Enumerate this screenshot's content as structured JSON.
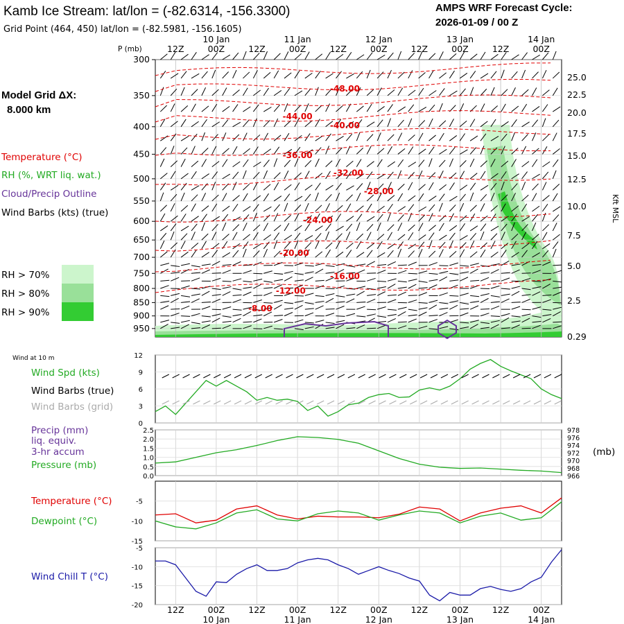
{
  "header": {
    "title": "Kamb Ice Stream:  lat/lon = (-82.6314, -156.3300)",
    "grid_point": "Grid Point (464, 450) lat/lon = (-82.5981, -156.1605)",
    "forecast_label": "AMPS WRF Forecast Cycle:",
    "forecast_cycle": "2026-01-09 / 00  Z",
    "model_grid_label": "Model Grid ΔX:",
    "model_grid_value": "8.000 km"
  },
  "legend": {
    "temperature": "Temperature (°C)",
    "rh": "RH (%, WRT liq. wat.)",
    "cloud": "Cloud/Precip Outline",
    "wind_barbs": "Wind Barbs (kts) (true)",
    "rh70": "RH > 70%",
    "rh80": "RH > 80%",
    "rh90": "RH > 90%",
    "kft_label": "Kft MSL",
    "p_label": "P (mb)",
    "wind10m": "Wind at 10 m",
    "wind_spd": "Wind Spd (kts)",
    "wind_barbs_true": "Wind Barbs (true)",
    "wind_barbs_grid": "Wind Barbs (grid)",
    "precip1": "Precip (mm)",
    "precip2": "liq. equiv.",
    "precip3": "3-hr accum",
    "pressure": "Pressure (mb)",
    "pressure_units": "(mb)",
    "temp_panel": "Temperature (°C)",
    "dewpoint_panel": "Dewpoint (°C)",
    "windchill_panel": "Wind Chill T (°C)"
  },
  "colors": {
    "temp": "#e00000",
    "rh_green": "#22aa22",
    "cloud": "#663399",
    "windchill": "#1a1aa8",
    "grid_barb": "#aaaaaa",
    "rh70": "#ccf5cc",
    "rh80": "#99e099",
    "rh90": "#33cc33"
  },
  "chart_data": [
    {
      "type": "time-height",
      "name": "sounding",
      "time_hours": [
        0,
        120
      ],
      "time_ticks": [
        "12Z",
        "00Z",
        "12Z",
        "00Z",
        "12Z",
        "00Z",
        "12Z",
        "00Z",
        "12Z",
        "00Z"
      ],
      "date_ticks": [
        "10 Jan",
        "11 Jan",
        "12 Jan",
        "13 Jan",
        "14 Jan"
      ],
      "pressure_levels_mb": [
        "300",
        "350",
        "400",
        "450",
        "500",
        "550",
        "600",
        "650",
        "700",
        "750",
        "800",
        "850",
        "900",
        "950"
      ],
      "height_kft": [
        "25.0",
        "22.5",
        "20.0",
        "17.5",
        "15.0",
        "12.5",
        "10.0",
        "7.5",
        "5.0",
        "2.5",
        "0.29"
      ],
      "temperature_labels": [
        {
          "value": "-48.00",
          "t": 56,
          "p": 340
        },
        {
          "value": "-44.00",
          "t": 42,
          "p": 383
        },
        {
          "value": "-40.00",
          "t": 56,
          "p": 398
        },
        {
          "value": "-36.00",
          "t": 42,
          "p": 452
        },
        {
          "value": "-32.00",
          "t": 57,
          "p": 488
        },
        {
          "value": "-28.00",
          "t": 66,
          "p": 528
        },
        {
          "value": "-24.00",
          "t": 48,
          "p": 597
        },
        {
          "value": "-20.00",
          "t": 41,
          "p": 687
        },
        {
          "value": "-16.00",
          "t": 56,
          "p": 760
        },
        {
          "value": "-12.00",
          "t": 40,
          "p": 808
        },
        {
          "value": "-8.00",
          "t": 31,
          "p": 872
        }
      ]
    },
    {
      "type": "line",
      "name": "wind_speed",
      "title": "Wind Spd (kts)",
      "ylim": [
        0,
        12
      ],
      "yticks": [
        "0",
        "3",
        "6",
        "9",
        "12"
      ],
      "x": [
        0,
        3,
        6,
        9,
        12,
        15,
        18,
        21,
        24,
        27,
        30,
        33,
        36,
        39,
        42,
        45,
        48,
        51,
        54,
        57,
        60,
        63,
        66,
        69,
        72,
        75,
        78,
        81,
        84,
        87,
        90,
        93,
        96,
        99,
        102,
        105,
        108,
        111,
        114,
        117,
        120
      ],
      "series": [
        {
          "name": "Wind Spd",
          "values": [
            2.0,
            3.0,
            1.5,
            3.5,
            5.5,
            7.5,
            6.5,
            7.5,
            6.5,
            5.5,
            4.0,
            4.5,
            4.0,
            4.2,
            3.8,
            2.2,
            3.0,
            1.2,
            2.0,
            3.2,
            3.5,
            4.5,
            5.0,
            5.2,
            4.5,
            4.6,
            5.8,
            6.2,
            5.8,
            6.5,
            7.8,
            9.5,
            10.5,
            11.2,
            10.0,
            9.2,
            8.5,
            7.8,
            6.0,
            5.0,
            4.3
          ]
        }
      ]
    },
    {
      "type": "line",
      "name": "pressure_precip",
      "title": "Pressure (mb)",
      "ylim_precip": [
        0,
        2.5
      ],
      "ylim_pressure": [
        966,
        978
      ],
      "yticks_left": [
        "0.0",
        "0.5",
        "1.0",
        "1.5",
        "2.0",
        "2.5"
      ],
      "yticks_right": [
        "966",
        "968",
        "970",
        "972",
        "974",
        "976",
        "978"
      ],
      "x": [
        0,
        6,
        12,
        18,
        24,
        30,
        36,
        42,
        48,
        54,
        60,
        66,
        72,
        78,
        84,
        90,
        96,
        102,
        108,
        114,
        120
      ],
      "series": [
        {
          "name": "Pressure",
          "values": [
            969.3,
            969.6,
            970.8,
            972.0,
            972.8,
            973.9,
            975.2,
            976.2,
            976.0,
            975.5,
            974.5,
            972.5,
            970.5,
            969.0,
            968.2,
            967.9,
            968.0,
            967.7,
            967.4,
            967.2,
            966.8
          ]
        }
      ]
    },
    {
      "type": "line",
      "name": "temp_dewpoint",
      "ylim": [
        -15,
        0
      ],
      "yticks": [
        "-15",
        "-10",
        "-5"
      ],
      "x": [
        0,
        6,
        12,
        18,
        24,
        30,
        36,
        42,
        48,
        54,
        60,
        66,
        72,
        78,
        84,
        90,
        96,
        102,
        108,
        114,
        120
      ],
      "series": [
        {
          "name": "Temperature",
          "values": [
            -8.5,
            -8.2,
            -10.5,
            -9.8,
            -7.0,
            -6.2,
            -8.5,
            -9.5,
            -8.8,
            -9.0,
            -9.0,
            -9.2,
            -8.3,
            -6.5,
            -7.0,
            -10.0,
            -8.0,
            -6.8,
            -6.2,
            -8.0,
            -4.2
          ]
        },
        {
          "name": "Dewpoint",
          "values": [
            -10.0,
            -11.5,
            -12.0,
            -10.5,
            -8.0,
            -7.2,
            -9.5,
            -10.0,
            -8.2,
            -7.5,
            -8.0,
            -9.8,
            -8.5,
            -7.5,
            -8.0,
            -10.5,
            -8.8,
            -8.0,
            -9.8,
            -9.2,
            -5.2
          ]
        }
      ]
    },
    {
      "type": "line",
      "name": "wind_chill",
      "ylim": [
        -20,
        -5
      ],
      "yticks": [
        "-20",
        "-15",
        "-10",
        "-5"
      ],
      "x": [
        0,
        3,
        6,
        9,
        12,
        15,
        18,
        21,
        24,
        27,
        30,
        33,
        36,
        39,
        42,
        45,
        48,
        51,
        54,
        57,
        60,
        63,
        66,
        69,
        72,
        75,
        78,
        81,
        84,
        87,
        90,
        93,
        96,
        99,
        102,
        105,
        108,
        111,
        114,
        117,
        120
      ],
      "series": [
        {
          "name": "Wind Chill",
          "values": [
            -8.5,
            -8.5,
            -9.5,
            -13.0,
            -16.5,
            -17.8,
            -14.0,
            -14.2,
            -12.0,
            -10.5,
            -9.5,
            -11.0,
            -11.0,
            -10.5,
            -9.0,
            -8.2,
            -7.8,
            -8.2,
            -9.5,
            -10.5,
            -12.0,
            -11.0,
            -10.0,
            -11.0,
            -11.8,
            -13.0,
            -13.8,
            -17.5,
            -19.0,
            -16.8,
            -17.5,
            -17.5,
            -15.8,
            -15.2,
            -16.0,
            -16.5,
            -15.8,
            -14.0,
            -12.8,
            -8.8,
            -5.5
          ]
        }
      ]
    }
  ]
}
